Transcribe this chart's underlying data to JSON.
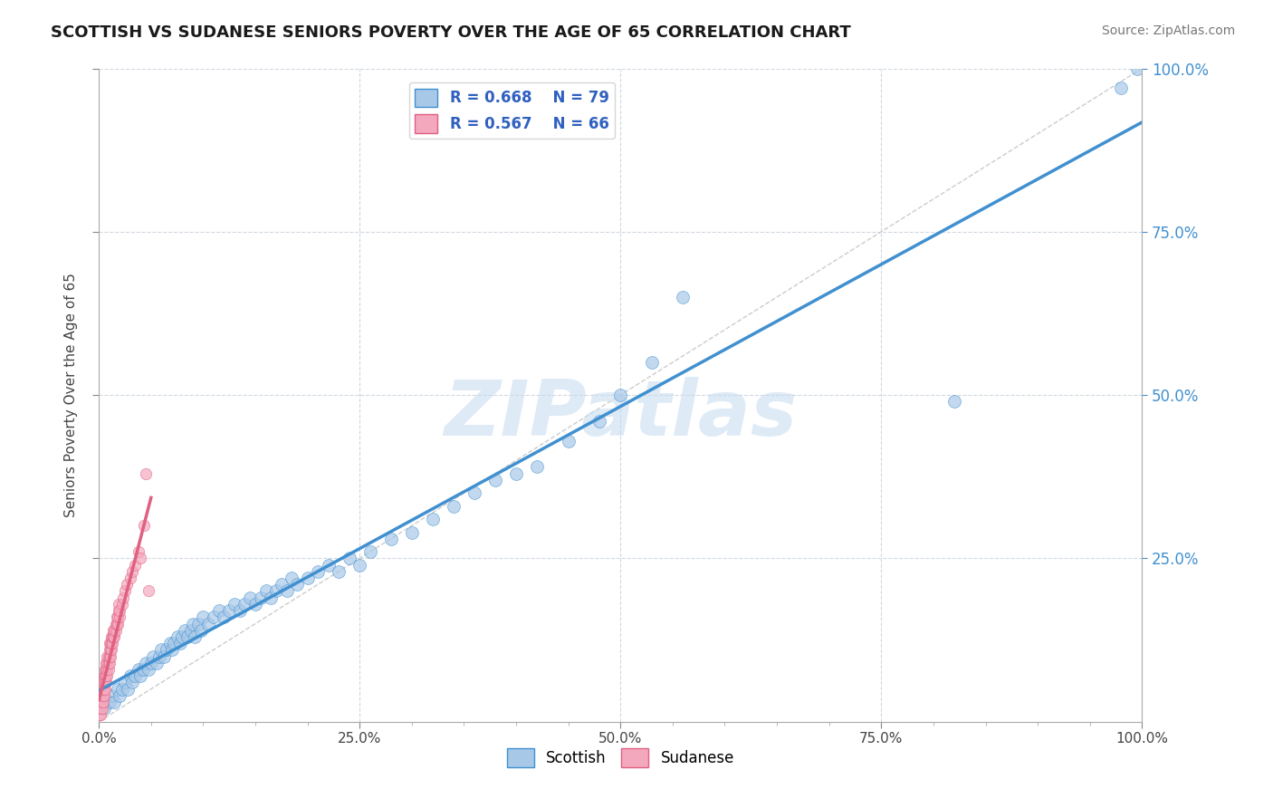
{
  "title": "SCOTTISH VS SUDANESE SENIORS POVERTY OVER THE AGE OF 65 CORRELATION CHART",
  "source": "Source: ZipAtlas.com",
  "ylabel": "Seniors Poverty Over the Age of 65",
  "xlim": [
    0,
    1
  ],
  "ylim": [
    0,
    1
  ],
  "xtick_labels": [
    "0.0%",
    "",
    "",
    "",
    "",
    "25.0%",
    "",
    "",
    "",
    "",
    "50.0%",
    "",
    "",
    "",
    "",
    "75.0%",
    "",
    "",
    "",
    "",
    "100.0%"
  ],
  "xtick_vals": [
    0.0,
    0.05,
    0.1,
    0.15,
    0.2,
    0.25,
    0.3,
    0.35,
    0.4,
    0.45,
    0.5,
    0.55,
    0.6,
    0.65,
    0.7,
    0.75,
    0.8,
    0.85,
    0.9,
    0.95,
    1.0
  ],
  "xtick_major_labels": [
    "0.0%",
    "25.0%",
    "50.0%",
    "75.0%",
    "100.0%"
  ],
  "xtick_major_vals": [
    0.0,
    0.25,
    0.5,
    0.75,
    1.0
  ],
  "ytick_vals": [
    0.25,
    0.5,
    0.75,
    1.0
  ],
  "ytick_labels_right": [
    "25.0%",
    "50.0%",
    "75.0%",
    "100.0%"
  ],
  "scottish_color": "#a8c8e8",
  "sudanese_color": "#f4a8be",
  "scottish_line_color": "#4090d0",
  "sudanese_line_color": "#e06080",
  "grid_color": "#d0d8e0",
  "background_color": "#ffffff",
  "watermark_color": "#c8ddf0",
  "legend_R_scottish": "R = 0.668",
  "legend_N_scottish": "N = 79",
  "legend_R_sudanese": "R = 0.567",
  "legend_N_sudanese": "N = 66",
  "legend_label_color": "#3060c0",
  "scottish_scatter_x": [
    0.005,
    0.01,
    0.012,
    0.015,
    0.018,
    0.02,
    0.022,
    0.025,
    0.028,
    0.03,
    0.032,
    0.035,
    0.038,
    0.04,
    0.042,
    0.045,
    0.048,
    0.05,
    0.052,
    0.055,
    0.058,
    0.06,
    0.062,
    0.065,
    0.068,
    0.07,
    0.072,
    0.075,
    0.078,
    0.08,
    0.082,
    0.085,
    0.088,
    0.09,
    0.092,
    0.095,
    0.098,
    0.1,
    0.105,
    0.11,
    0.115,
    0.12,
    0.125,
    0.13,
    0.135,
    0.14,
    0.145,
    0.15,
    0.155,
    0.16,
    0.165,
    0.17,
    0.175,
    0.18,
    0.185,
    0.19,
    0.2,
    0.21,
    0.22,
    0.23,
    0.24,
    0.25,
    0.26,
    0.28,
    0.3,
    0.32,
    0.34,
    0.36,
    0.38,
    0.4,
    0.42,
    0.45,
    0.48,
    0.5,
    0.53,
    0.56,
    0.82,
    0.98,
    0.995
  ],
  "scottish_scatter_y": [
    0.02,
    0.03,
    0.04,
    0.03,
    0.05,
    0.04,
    0.05,
    0.06,
    0.05,
    0.07,
    0.06,
    0.07,
    0.08,
    0.07,
    0.08,
    0.09,
    0.08,
    0.09,
    0.1,
    0.09,
    0.1,
    0.11,
    0.1,
    0.11,
    0.12,
    0.11,
    0.12,
    0.13,
    0.12,
    0.13,
    0.14,
    0.13,
    0.14,
    0.15,
    0.13,
    0.15,
    0.14,
    0.16,
    0.15,
    0.16,
    0.17,
    0.16,
    0.17,
    0.18,
    0.17,
    0.18,
    0.19,
    0.18,
    0.19,
    0.2,
    0.19,
    0.2,
    0.21,
    0.2,
    0.22,
    0.21,
    0.22,
    0.23,
    0.24,
    0.23,
    0.25,
    0.24,
    0.26,
    0.28,
    0.29,
    0.31,
    0.33,
    0.35,
    0.37,
    0.38,
    0.39,
    0.43,
    0.46,
    0.5,
    0.55,
    0.65,
    0.49,
    0.97,
    1.0
  ],
  "sudanese_scatter_x": [
    0.001,
    0.002,
    0.002,
    0.003,
    0.003,
    0.003,
    0.004,
    0.004,
    0.004,
    0.005,
    0.005,
    0.005,
    0.005,
    0.006,
    0.006,
    0.006,
    0.006,
    0.007,
    0.007,
    0.007,
    0.007,
    0.008,
    0.008,
    0.008,
    0.008,
    0.009,
    0.009,
    0.009,
    0.01,
    0.01,
    0.01,
    0.01,
    0.011,
    0.011,
    0.011,
    0.012,
    0.012,
    0.012,
    0.013,
    0.013,
    0.014,
    0.014,
    0.015,
    0.015,
    0.016,
    0.016,
    0.017,
    0.017,
    0.018,
    0.018,
    0.019,
    0.019,
    0.02,
    0.02,
    0.022,
    0.023,
    0.025,
    0.027,
    0.03,
    0.032,
    0.035,
    0.038,
    0.04,
    0.043,
    0.045,
    0.048
  ],
  "sudanese_scatter_y": [
    0.01,
    0.01,
    0.02,
    0.02,
    0.03,
    0.04,
    0.03,
    0.04,
    0.05,
    0.04,
    0.05,
    0.06,
    0.07,
    0.05,
    0.06,
    0.07,
    0.08,
    0.06,
    0.07,
    0.08,
    0.09,
    0.07,
    0.08,
    0.09,
    0.1,
    0.08,
    0.09,
    0.1,
    0.09,
    0.1,
    0.11,
    0.12,
    0.1,
    0.11,
    0.12,
    0.11,
    0.12,
    0.13,
    0.12,
    0.13,
    0.13,
    0.14,
    0.13,
    0.14,
    0.14,
    0.15,
    0.15,
    0.16,
    0.15,
    0.16,
    0.17,
    0.18,
    0.16,
    0.17,
    0.18,
    0.19,
    0.2,
    0.21,
    0.22,
    0.23,
    0.24,
    0.26,
    0.25,
    0.3,
    0.38,
    0.2
  ]
}
